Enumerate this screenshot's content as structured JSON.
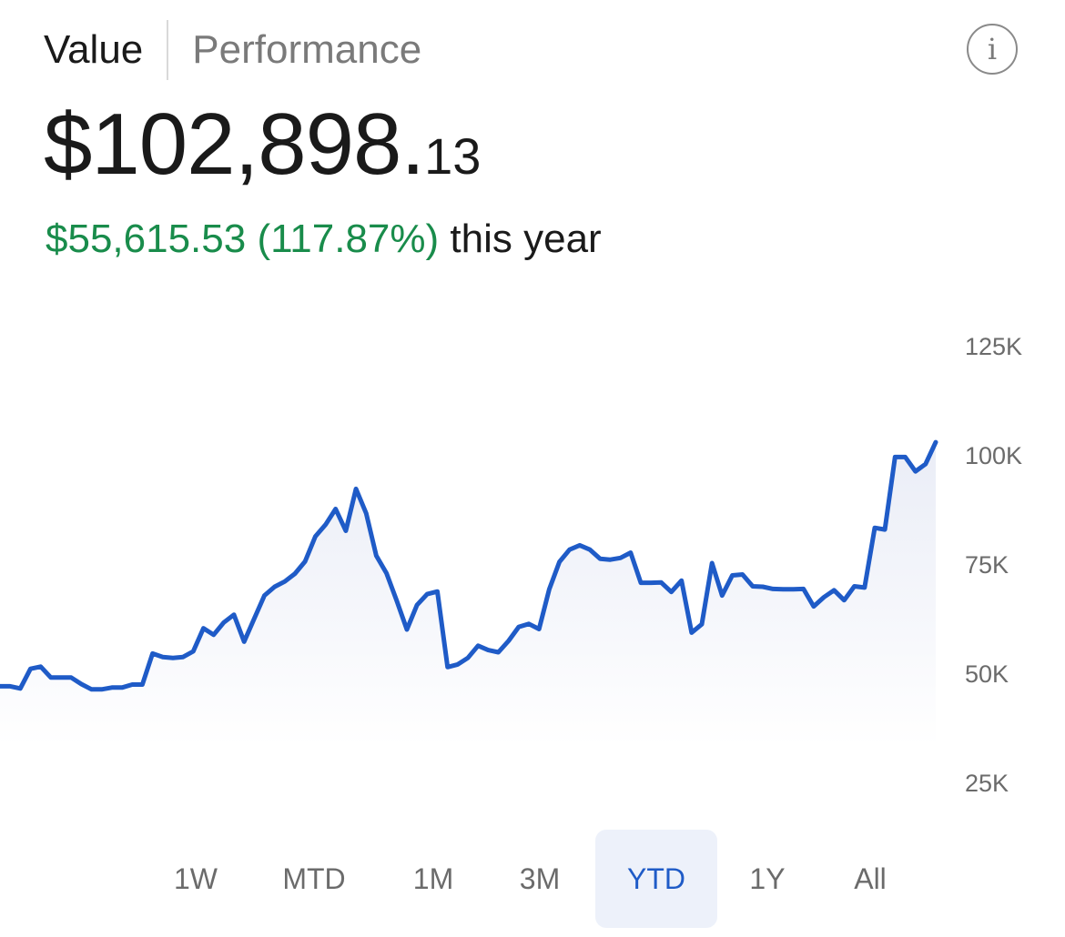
{
  "tabs": [
    {
      "label": "Value",
      "active": true
    },
    {
      "label": "Performance",
      "active": false
    }
  ],
  "info_icon": "info-icon",
  "summary": {
    "value_main": "$102,898.",
    "value_cents": "13",
    "change_amount": "$55,615.53 (117.87%)",
    "change_period": "this year",
    "gain_color": "#198c4b"
  },
  "chart_data": {
    "type": "area",
    "title": "",
    "line_color": "#1f5bc7",
    "ylim": [
      25000,
      125000
    ],
    "yticks": [
      "125K",
      "100K",
      "75K",
      "50K",
      "25K"
    ],
    "ytick_values": [
      125000,
      100000,
      75000,
      50000,
      25000
    ],
    "values": [
      47000,
      47000,
      46500,
      51000,
      51500,
      49000,
      49000,
      49000,
      47500,
      46300,
      46300,
      46700,
      46700,
      47400,
      47400,
      54500,
      53700,
      53500,
      53700,
      55000,
      60300,
      58800,
      61600,
      63400,
      57200,
      62500,
      67800,
      69800,
      71000,
      72800,
      75600,
      81300,
      84000,
      87600,
      82600,
      92200,
      86600,
      76900,
      72900,
      66600,
      60000,
      65600,
      68100,
      68700,
      51400,
      52000,
      53500,
      56300,
      55300,
      54800,
      57400,
      60600,
      61300,
      60100,
      69200,
      75500,
      78300,
      79300,
      78300,
      76200,
      76000,
      76400,
      77600,
      70700,
      70700,
      70800,
      68600,
      71200,
      59300,
      61200,
      75200,
      67800,
      72400,
      72600,
      69900,
      69800,
      69300,
      69200,
      69200,
      69300,
      65300,
      67400,
      69000,
      66700,
      69900,
      69600,
      83300,
      82900,
      99500,
      99500,
      96200,
      97900,
      102900
    ]
  },
  "ranges": [
    {
      "label": "1W",
      "selected": false
    },
    {
      "label": "MTD",
      "selected": false
    },
    {
      "label": "1M",
      "selected": false
    },
    {
      "label": "3M",
      "selected": false
    },
    {
      "label": "YTD",
      "selected": true
    },
    {
      "label": "1Y",
      "selected": false
    },
    {
      "label": "All",
      "selected": false
    }
  ]
}
